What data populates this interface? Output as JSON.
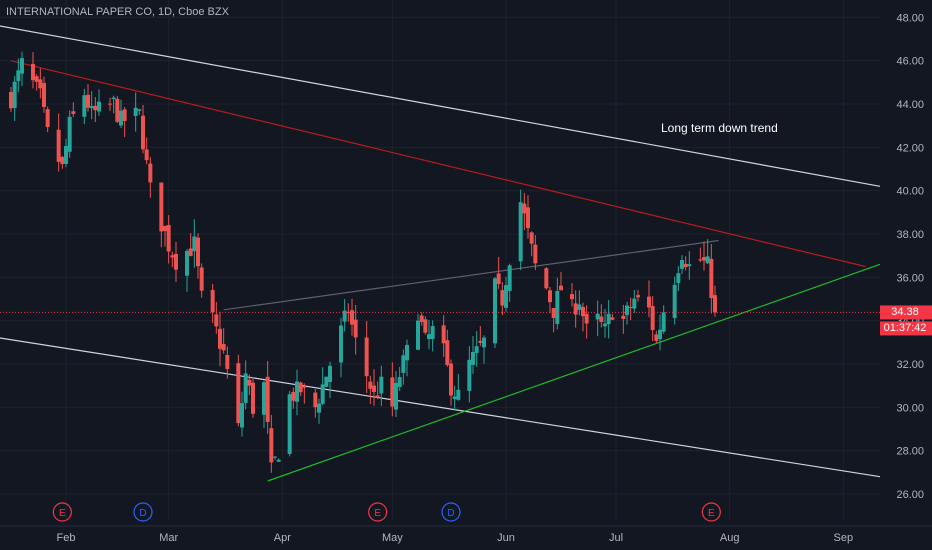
{
  "legend": {
    "title": "INTERNATIONAL PAPER CO, 1D, Cboe BZX"
  },
  "annotation": {
    "text": "Long term down trend"
  },
  "price_badge": {
    "last": "34.38",
    "countdown": "01:37:42",
    "color": "#f23645"
  },
  "colors": {
    "background": "#131722",
    "up": "#26a69a",
    "down": "#ef5350",
    "axis_text": "#b2b5be",
    "channel": "#d1d4dc",
    "resistance": "#b71c1c",
    "support": "#1fba2c",
    "midline": "#5d606b"
  },
  "chart_data": {
    "type": "candlestick",
    "title": "",
    "ylim": [
      24.8,
      48.8
    ],
    "y_ticks": [
      "26.00",
      "28.00",
      "30.00",
      "32.00",
      "34.00",
      "36.00",
      "38.00",
      "40.00",
      "42.00",
      "44.00",
      "46.00",
      "48.00"
    ],
    "y_tick_values": [
      26,
      28,
      30,
      32,
      34,
      36,
      38,
      40,
      42,
      44,
      46,
      48
    ],
    "x_month_ticks": [
      {
        "label": "Feb",
        "date": "2023-02-01"
      },
      {
        "label": "Mar",
        "date": "2023-03-01"
      },
      {
        "label": "Apr",
        "date": "2023-04-01"
      },
      {
        "label": "May",
        "date": "2023-05-01"
      },
      {
        "label": "Jun",
        "date": "2023-06-01"
      },
      {
        "label": "Jul",
        "date": "2023-07-01"
      },
      {
        "label": "Aug",
        "date": "2023-08-01"
      },
      {
        "label": "Sep",
        "date": "2023-09-01"
      }
    ],
    "x_range": [
      "2023-01-14",
      "2023-09-11"
    ],
    "events": [
      {
        "label": "E",
        "date": "2023-01-31",
        "color": "#f23645"
      },
      {
        "label": "D",
        "date": "2023-02-22",
        "color": "#2962ff"
      },
      {
        "label": "E",
        "date": "2023-04-27",
        "color": "#f23645"
      },
      {
        "label": "D",
        "date": "2023-05-17",
        "color": "#2962ff"
      },
      {
        "label": "E",
        "date": "2023-07-27",
        "color": "#f23645"
      }
    ],
    "last_price": 34.38,
    "close_path": [
      [
        "2023-01-17",
        44.3
      ],
      [
        "2023-01-20",
        45.8
      ],
      [
        "2023-01-25",
        44.3
      ],
      [
        "2023-01-27",
        42.6
      ],
      [
        "2023-01-31",
        41.0
      ],
      [
        "2023-02-02",
        43.0
      ],
      [
        "2023-02-06",
        44.5
      ],
      [
        "2023-02-08",
        43.5
      ],
      [
        "2023-02-14",
        44.0
      ],
      [
        "2023-02-16",
        43.2
      ],
      [
        "2023-02-21",
        43.5
      ],
      [
        "2023-02-24",
        40.0
      ],
      [
        "2023-03-01",
        37.5
      ],
      [
        "2023-03-03",
        36.8
      ],
      [
        "2023-03-08",
        37.5
      ],
      [
        "2023-03-10",
        35.0
      ],
      [
        "2023-03-13",
        34.0
      ],
      [
        "2023-03-16",
        32.5
      ],
      [
        "2023-03-20",
        29.0
      ],
      [
        "2023-03-22",
        31.5
      ],
      [
        "2023-03-24",
        30.0
      ],
      [
        "2023-03-27",
        31.0
      ],
      [
        "2023-03-29",
        27.0
      ],
      [
        "2023-03-31",
        28.0
      ],
      [
        "2023-04-03",
        30.5
      ],
      [
        "2023-04-06",
        30.8
      ],
      [
        "2023-04-10",
        30.0
      ],
      [
        "2023-04-12",
        31.0
      ],
      [
        "2023-04-14",
        32.0
      ],
      [
        "2023-04-17",
        33.5
      ],
      [
        "2023-04-19",
        34.5
      ],
      [
        "2023-04-21",
        33.0
      ],
      [
        "2023-04-24",
        31.5
      ],
      [
        "2023-04-26",
        30.5
      ],
      [
        "2023-04-28",
        31.0
      ],
      [
        "2023-05-01",
        30.0
      ],
      [
        "2023-05-03",
        31.5
      ],
      [
        "2023-05-05",
        32.5
      ],
      [
        "2023-05-08",
        34.5
      ],
      [
        "2023-05-10",
        33.0
      ],
      [
        "2023-05-12",
        33.5
      ],
      [
        "2023-05-15",
        32.5
      ],
      [
        "2023-05-17",
        31.0
      ],
      [
        "2023-05-19",
        30.5
      ],
      [
        "2023-05-22",
        32.0
      ],
      [
        "2023-05-24",
        32.5
      ],
      [
        "2023-05-26",
        33.0
      ],
      [
        "2023-05-29",
        35.5
      ],
      [
        "2023-05-31",
        35.0
      ],
      [
        "2023-06-02",
        37.0
      ],
      [
        "2023-06-05",
        39.5
      ],
      [
        "2023-06-07",
        38.0
      ],
      [
        "2023-06-09",
        36.5
      ],
      [
        "2023-06-12",
        35.5
      ],
      [
        "2023-06-14",
        34.5
      ],
      [
        "2023-06-16",
        35.5
      ],
      [
        "2023-06-19",
        34.5
      ],
      [
        "2023-06-21",
        35.0
      ],
      [
        "2023-06-23",
        33.5
      ],
      [
        "2023-06-26",
        34.0
      ],
      [
        "2023-06-28",
        33.5
      ],
      [
        "2023-06-30",
        34.5
      ],
      [
        "2023-07-03",
        34.0
      ],
      [
        "2023-07-06",
        35.0
      ],
      [
        "2023-07-10",
        34.5
      ],
      [
        "2023-07-12",
        33.0
      ],
      [
        "2023-07-14",
        34.5
      ],
      [
        "2023-07-17",
        36.0
      ],
      [
        "2023-07-19",
        37.2
      ],
      [
        "2023-07-21",
        36.5
      ],
      [
        "2023-07-24",
        36.8
      ],
      [
        "2023-07-26",
        36.5
      ],
      [
        "2023-07-28",
        34.38
      ]
    ],
    "trendlines": [
      {
        "name": "upper-channel",
        "color": "#d1d4dc",
        "from": [
          "2023-01-14",
          47.6
        ],
        "to": [
          "2023-09-11",
          40.2
        ]
      },
      {
        "name": "lower-channel",
        "color": "#d1d4dc",
        "from": [
          "2023-01-14",
          33.2
        ],
        "to": [
          "2023-09-11",
          26.8
        ]
      },
      {
        "name": "resistance",
        "color": "#b71c1c",
        "from": [
          "2023-01-17",
          46.0
        ],
        "to": [
          "2023-09-07",
          36.5
        ]
      },
      {
        "name": "support",
        "color": "#1fba2c",
        "from": [
          "2023-03-28",
          26.6
        ],
        "to": [
          "2023-09-11",
          36.6
        ]
      },
      {
        "name": "midline",
        "color": "#5d606b",
        "from": [
          "2023-03-16",
          34.5
        ],
        "to": [
          "2023-07-29",
          37.7
        ]
      }
    ]
  }
}
